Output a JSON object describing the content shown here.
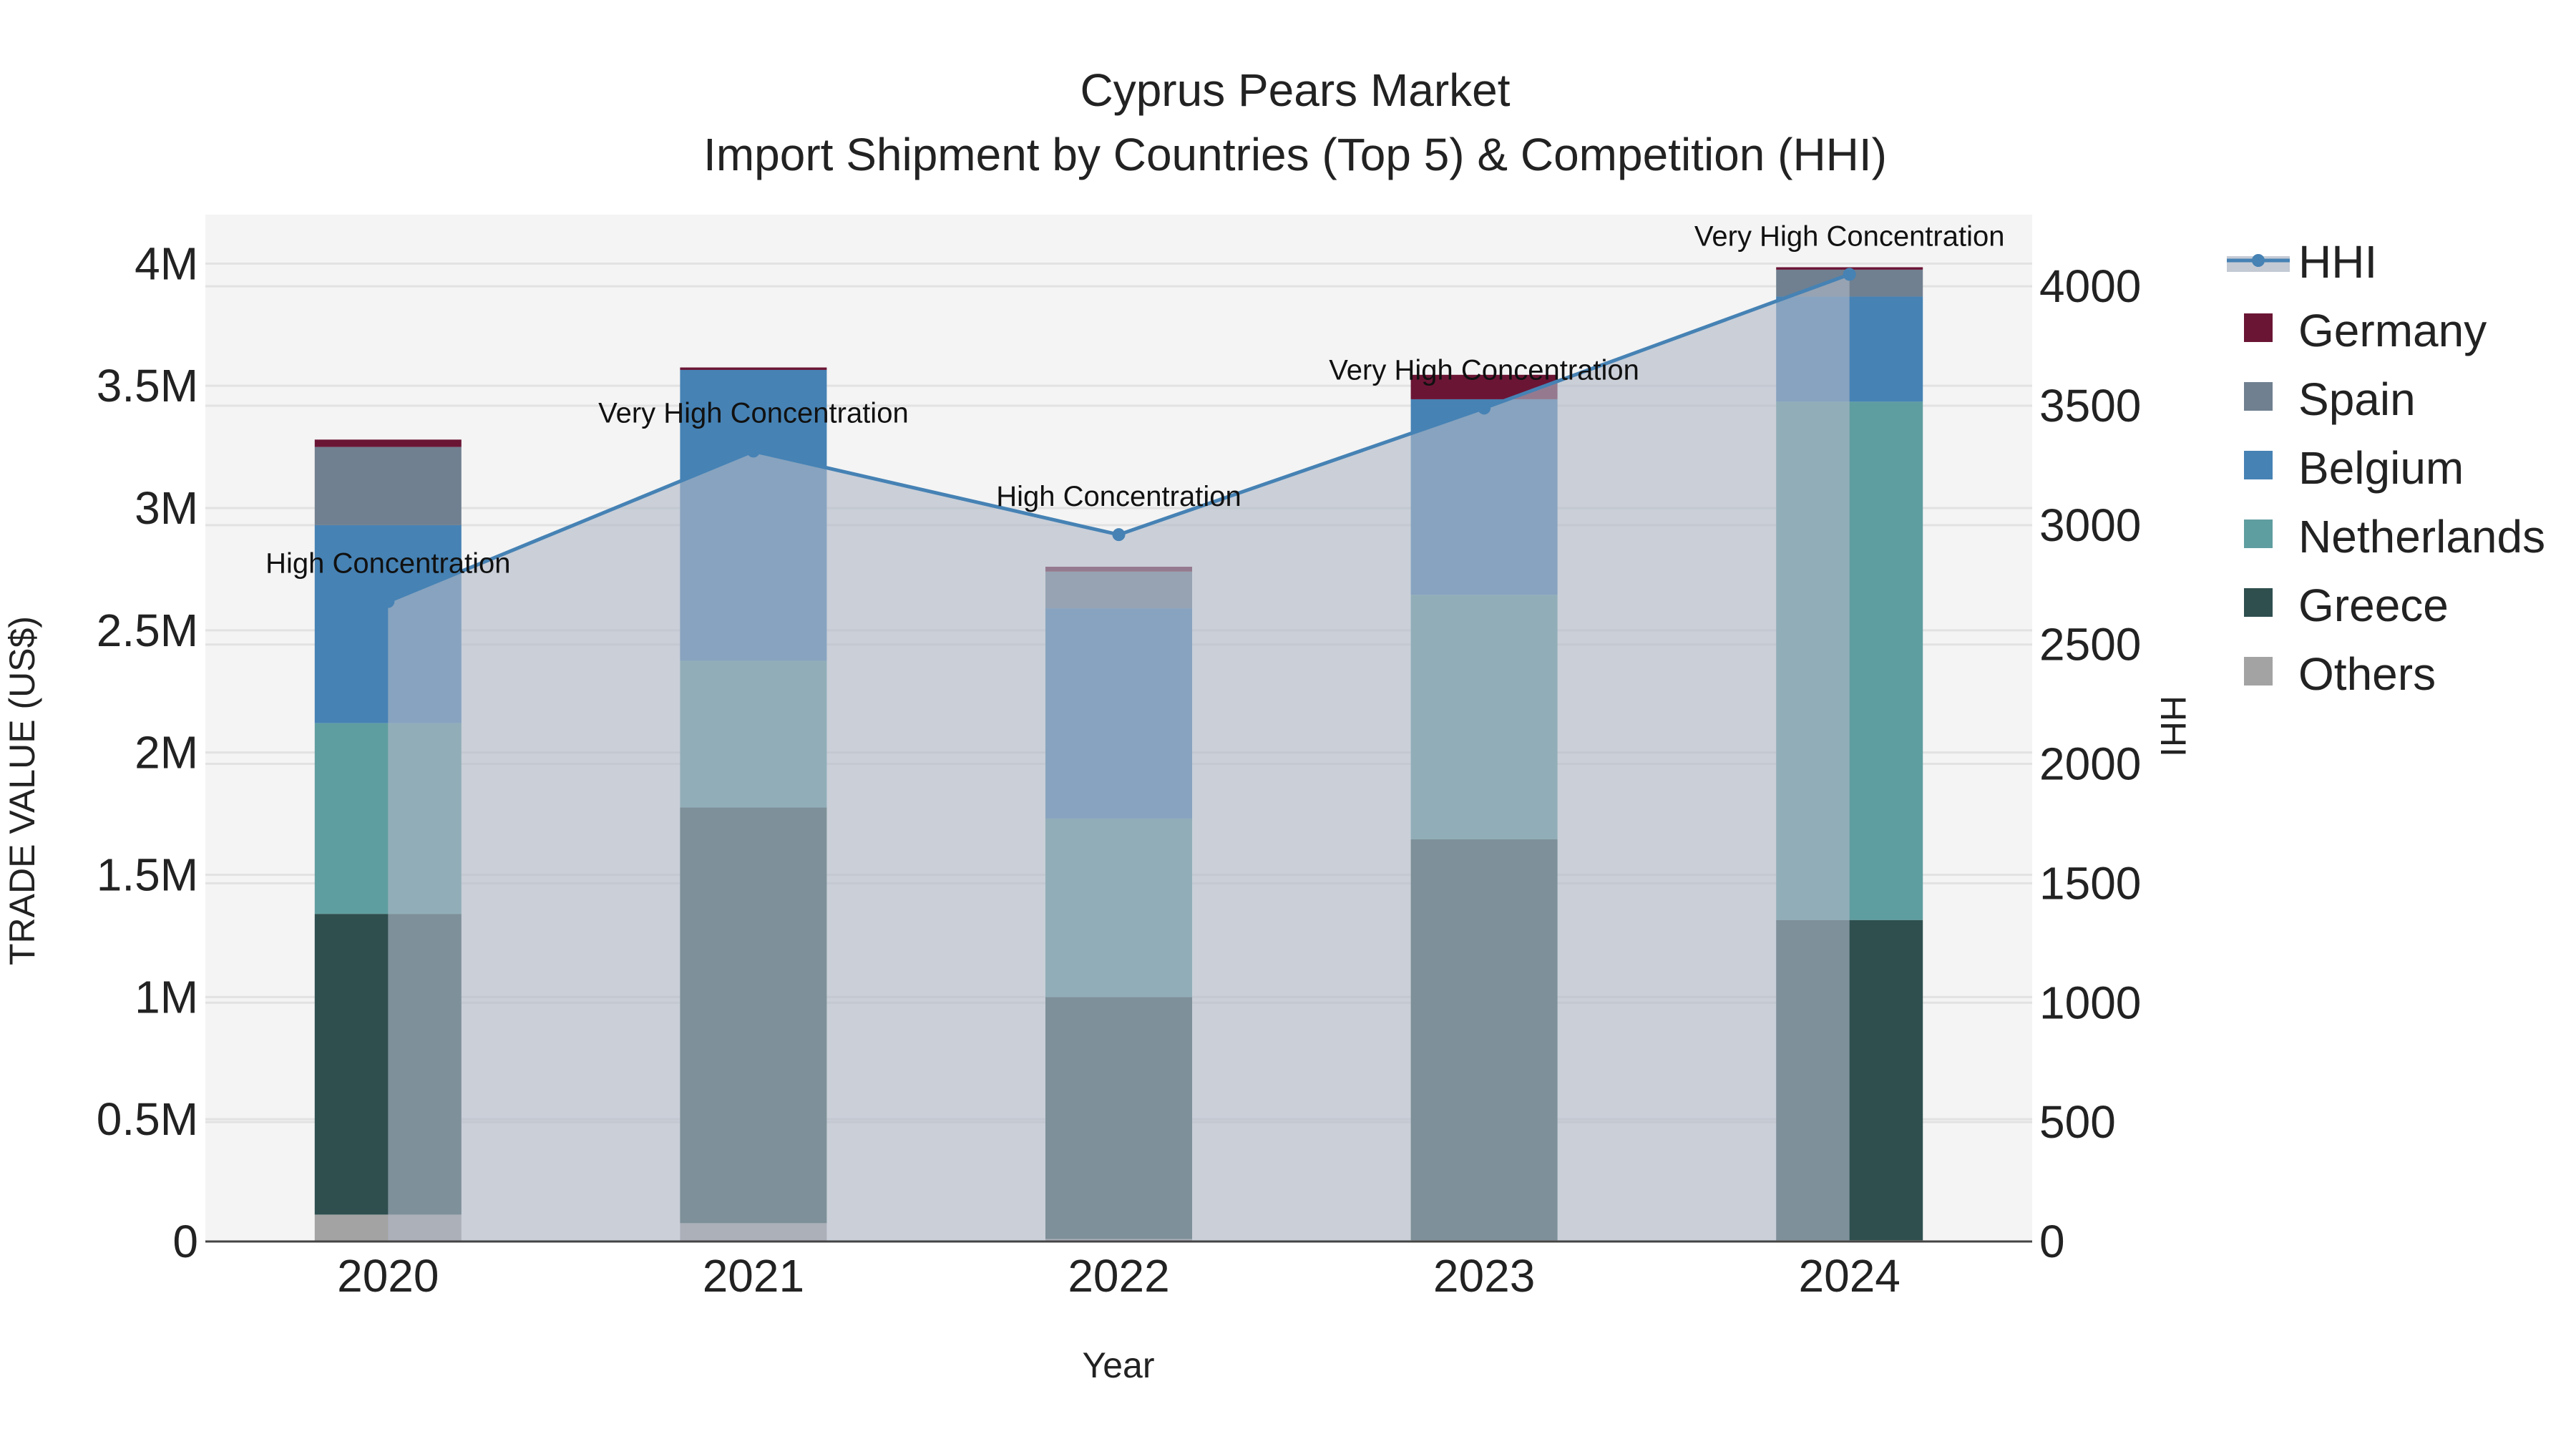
{
  "chart_data": {
    "type": "bar",
    "stacked": true,
    "title": "Cyprus Pears Market",
    "subtitle": "Import Shipment by Countries (Top 5) & Competition (HHI)",
    "xlabel": "Year",
    "ylabel": "TRADE VALUE (US$)",
    "y2label": "HHI",
    "categories": [
      "2020",
      "2021",
      "2022",
      "2023",
      "2024"
    ],
    "ylim": [
      0,
      4200000
    ],
    "y2lim": [
      0,
      4300
    ],
    "y_ticks": [
      0,
      500000,
      1000000,
      1500000,
      2000000,
      2500000,
      3000000,
      3500000,
      4000000
    ],
    "y_tick_labels": [
      "0",
      "0.5M",
      "1M",
      "1.5M",
      "2M",
      "2.5M",
      "3M",
      "3.5M",
      "4M"
    ],
    "y2_ticks": [
      0,
      500,
      1000,
      1500,
      2000,
      2500,
      3000,
      3500,
      4000
    ],
    "y2_tick_labels": [
      "0",
      "500",
      "1000",
      "1500",
      "2000",
      "2500",
      "3000",
      "3500",
      "4000"
    ],
    "series": [
      {
        "name": "Others",
        "color": "#a3a3a3",
        "values": [
          110000,
          75000,
          10000,
          5000,
          5000
        ]
      },
      {
        "name": "Greece",
        "color": "#2f4f4f",
        "values": [
          1230000,
          1700000,
          990000,
          1640000,
          1310000
        ]
      },
      {
        "name": "Netherlands",
        "color": "#5f9ea0",
        "values": [
          780000,
          600000,
          730000,
          1000000,
          2120000
        ]
      },
      {
        "name": "Belgium",
        "color": "#4682b4",
        "values": [
          810000,
          1190000,
          860000,
          800000,
          430000
        ]
      },
      {
        "name": "Spain",
        "color": "#708090",
        "values": [
          320000,
          0,
          150000,
          0,
          110000
        ]
      },
      {
        "name": "Germany",
        "color": "#6b1535",
        "values": [
          30000,
          10000,
          20000,
          100000,
          10000
        ]
      }
    ],
    "hhi": {
      "name": "HHI",
      "color": "#4682b4",
      "values": [
        2680,
        3310,
        2960,
        3490,
        4050
      ],
      "labels": [
        "High Concentration",
        "Very High Concentration",
        "High Concentration",
        "Very High Concentration",
        "Very High Concentration"
      ]
    },
    "legend_order": [
      "HHI",
      "Germany",
      "Spain",
      "Belgium",
      "Netherlands",
      "Greece",
      "Others"
    ],
    "legend_position": "right",
    "grid": true
  }
}
